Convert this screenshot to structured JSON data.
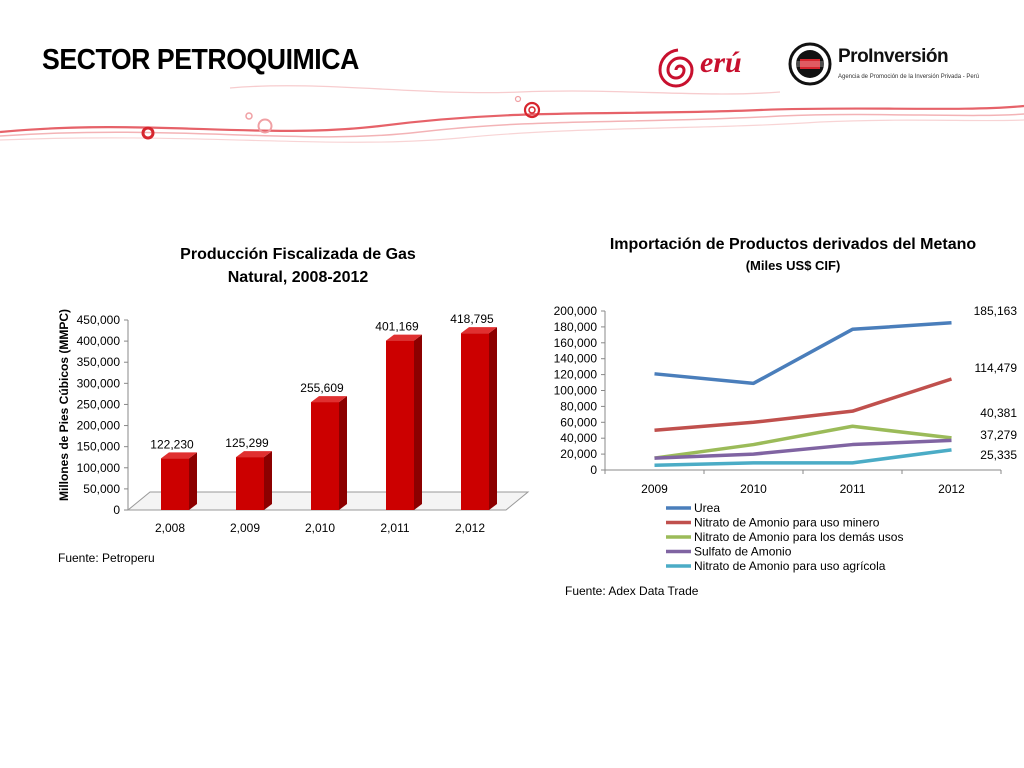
{
  "slide": {
    "title": "SECTOR PETROQUIMICA"
  },
  "logos": {
    "peru": {
      "text": "erú",
      "icon": "peru-spiral-icon",
      "color": "#c8102e"
    },
    "proinversion": {
      "name": "ProInversión",
      "tagline": "Agencia de Promoción de la Inversión Privada - Perú",
      "icon": "proinversion-emblem-icon"
    }
  },
  "colors": {
    "accent_red": "#d7262e",
    "bar_red": "#cc0000",
    "bar_red_dark": "#8c0000"
  },
  "chart_data": [
    {
      "type": "bar",
      "title_lines": [
        "Producción Fiscalizada de Gas",
        "Natural, 2008-2012"
      ],
      "ylabel": "Millones de Pies Cúbicos (MMPC)",
      "xlabel": "",
      "categories": [
        "2,008",
        "2,009",
        "2,010",
        "2,011",
        "2,012"
      ],
      "values": [
        122230,
        125299,
        255609,
        401169,
        418795
      ],
      "data_labels": [
        "122,230",
        "125,299",
        "255,609",
        "401,169",
        "418,795"
      ],
      "ylim": [
        0,
        450000
      ],
      "yticks": [
        0,
        50000,
        100000,
        150000,
        200000,
        250000,
        300000,
        350000,
        400000,
        450000
      ],
      "ytick_labels": [
        "0",
        "50,000",
        "100,000",
        "150,000",
        "200,000",
        "250,000",
        "300,000",
        "350,000",
        "400,000",
        "450,000"
      ],
      "grid": false,
      "style": "3d",
      "source": "Fuente: Petroperu"
    },
    {
      "type": "line",
      "title": "Importación de Productos derivados del Metano",
      "subtitle": "(Miles US$ CIF)",
      "categories": [
        "2009",
        "2010",
        "2011",
        "2012"
      ],
      "ylim": [
        0,
        200000
      ],
      "yticks": [
        0,
        20000,
        40000,
        60000,
        80000,
        100000,
        120000,
        140000,
        160000,
        180000,
        200000
      ],
      "ytick_labels": [
        "0",
        "20,000",
        "40,000",
        "60,000",
        "80,000",
        "100,000",
        "120,000",
        "140,000",
        "160,000",
        "180,000",
        "200,000"
      ],
      "grid": false,
      "legend_position": "bottom",
      "series": [
        {
          "name": "Urea",
          "values": [
            121000,
            109000,
            177000,
            185163
          ],
          "end_label": "185,163",
          "color": "#4a7ebb"
        },
        {
          "name": "Nitrato de Amonio para uso minero",
          "values": [
            50000,
            60000,
            74000,
            114479
          ],
          "end_label": "114,479",
          "color": "#c0504d"
        },
        {
          "name": "Nitrato de Amonio para los demás usos",
          "values": [
            15000,
            32000,
            55000,
            40381
          ],
          "end_label": "40,381",
          "color": "#9bbb59"
        },
        {
          "name": "Sulfato de Amonio",
          "values": [
            15000,
            20000,
            32000,
            37279
          ],
          "end_label": "37,279",
          "color": "#8064a2"
        },
        {
          "name": "Nitrato de Amonio para uso agrícola",
          "values": [
            6000,
            9000,
            9000,
            25335
          ],
          "end_label": "25,335",
          "color": "#4bacc6"
        }
      ],
      "source": "Fuente: Adex Data Trade"
    }
  ]
}
